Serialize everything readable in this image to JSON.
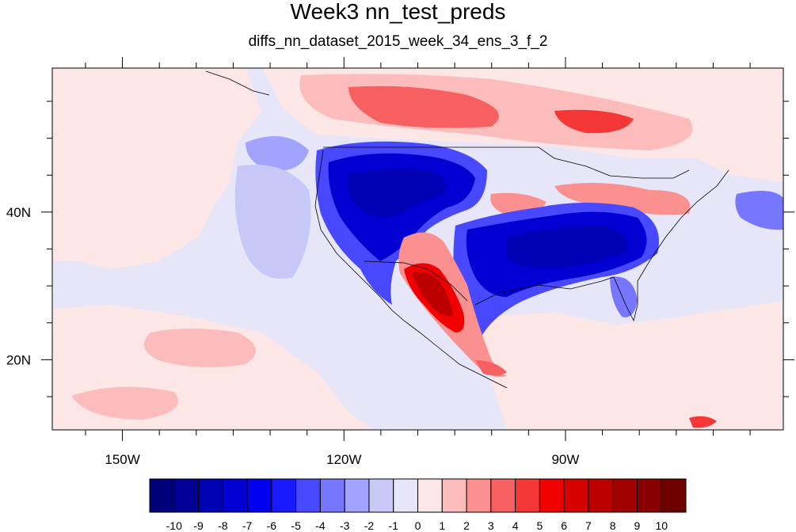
{
  "title": "Week3 nn_test_preds",
  "subtitle": "diffs_nn_dataset_2015_week_34_ens_3_f_2",
  "map": {
    "lon_range": [
      -159.5,
      -60.5
    ],
    "lat_range": [
      10.5,
      59.5
    ],
    "x_ticks": [
      {
        "lon": -150,
        "label": "150W"
      },
      {
        "lon": -120,
        "label": "120W"
      },
      {
        "lon": -90,
        "label": "90W"
      }
    ],
    "y_ticks": [
      {
        "lat": 40,
        "label": "40N"
      },
      {
        "lat": 20,
        "label": "20N"
      }
    ]
  },
  "colorbar": {
    "labels": [
      "-10",
      "-9",
      "-8",
      "-7",
      "-6",
      "-5",
      "-4",
      "-3",
      "-2",
      "-1",
      "0",
      "1",
      "2",
      "3",
      "4",
      "5",
      "6",
      "7",
      "8",
      "9",
      "10"
    ],
    "colors": [
      "#00007a",
      "#000096",
      "#0000b4",
      "#0000d2",
      "#0000f0",
      "#1a1aff",
      "#4848ff",
      "#7676ff",
      "#a2a2ff",
      "#c8c8f8",
      "#e6e6f8",
      "#fde6e6",
      "#fcbcbc",
      "#fa9090",
      "#f76060",
      "#f43636",
      "#f00000",
      "#d60000",
      "#bc0000",
      "#a00000",
      "#880000",
      "#6e0000"
    ]
  },
  "colors": {
    "background_field": "#e6e6f8",
    "warm_light": "#fde6e6",
    "cool_light": "#c8c8f8"
  }
}
